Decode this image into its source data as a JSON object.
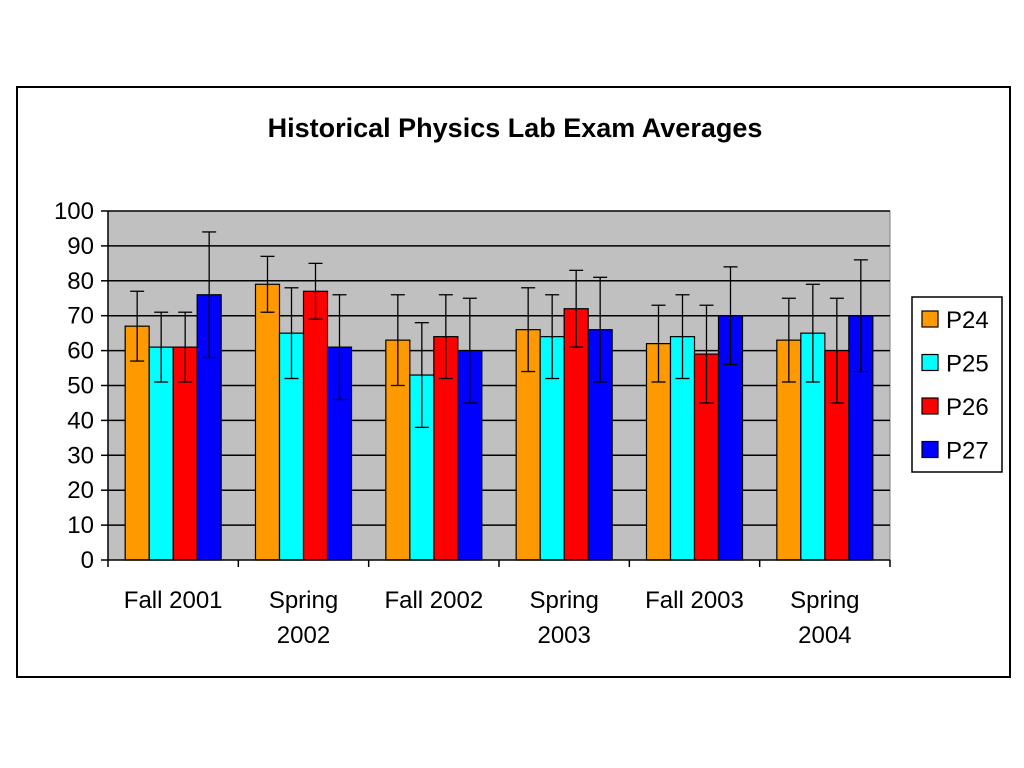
{
  "chart_data": {
    "type": "bar",
    "title": "Historical Physics Lab Exam Averages",
    "xlabel": "",
    "ylabel": "",
    "ylim": [
      0,
      100
    ],
    "yticks": [
      0,
      10,
      20,
      30,
      40,
      50,
      60,
      70,
      80,
      90,
      100
    ],
    "grid": true,
    "legend_position": "right",
    "plot_background": "#c0c0c0",
    "categories": [
      [
        "Fall 2001"
      ],
      [
        "Spring",
        "2002"
      ],
      [
        "Fall 2002"
      ],
      [
        "Spring",
        "2003"
      ],
      [
        "Fall 2003"
      ],
      [
        "Spring",
        "2004"
      ]
    ],
    "series": [
      {
        "name": "P24",
        "color": "#ff9900",
        "values": [
          67,
          79,
          63,
          66,
          62,
          63
        ],
        "error_plus": [
          10,
          8,
          13,
          12,
          11,
          12
        ],
        "error_minus": [
          10,
          8,
          13,
          12,
          11,
          12
        ]
      },
      {
        "name": "P25",
        "color": "#00ffff",
        "values": [
          61,
          65,
          53,
          64,
          64,
          65
        ],
        "error_plus": [
          10,
          13,
          15,
          12,
          12,
          14
        ],
        "error_minus": [
          10,
          13,
          15,
          12,
          12,
          14
        ]
      },
      {
        "name": "P26",
        "color": "#ff0000",
        "values": [
          61,
          77,
          64,
          72,
          59,
          60
        ],
        "error_plus": [
          10,
          8,
          12,
          11,
          14,
          15
        ],
        "error_minus": [
          10,
          8,
          12,
          11,
          14,
          15
        ]
      },
      {
        "name": "P27",
        "color": "#0000ff",
        "values": [
          76,
          61,
          60,
          66,
          70,
          70
        ],
        "error_plus": [
          18,
          15,
          15,
          15,
          14,
          16
        ],
        "error_minus": [
          18,
          15,
          15,
          15,
          14,
          16
        ]
      }
    ]
  }
}
